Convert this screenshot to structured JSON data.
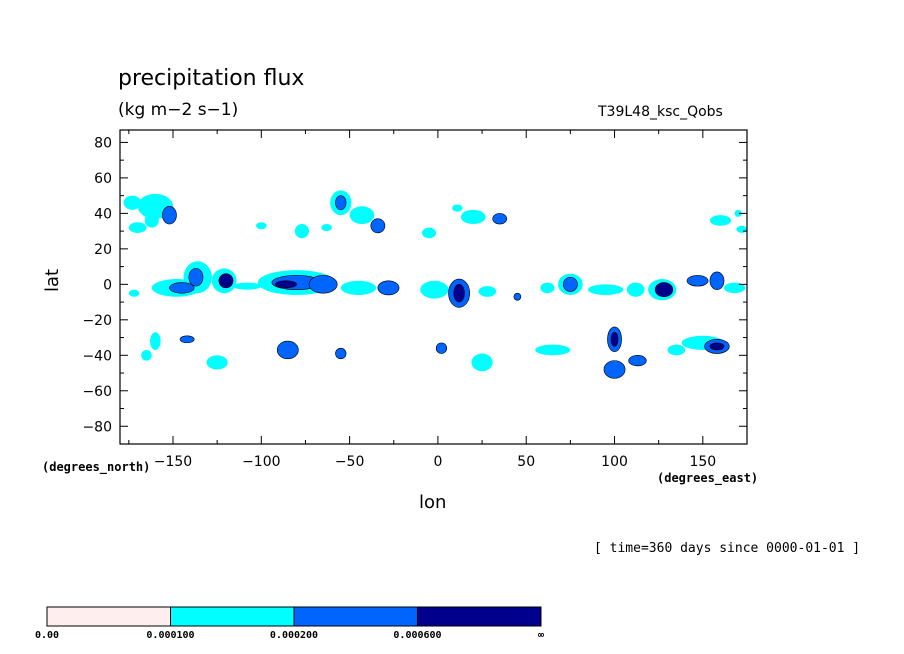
{
  "chart_data": {
    "type": "contour",
    "title": "precipitation flux",
    "units": "(kg m−2 s−1)",
    "run_id": "T39L48_ksc_Qobs",
    "xlabel": "lon",
    "ylabel": "lat",
    "x_units": "(degrees_east)",
    "y_units": "(degrees_north)",
    "xlim": [
      -180,
      175
    ],
    "ylim": [
      -90,
      87
    ],
    "x_ticks": [
      -150,
      -100,
      -50,
      0,
      50,
      100,
      150
    ],
    "x_tick_labels": [
      "−150",
      "−100",
      "−50",
      "0",
      "50",
      "100",
      "150"
    ],
    "y_ticks": [
      80,
      60,
      40,
      20,
      0,
      -20,
      -40,
      -60,
      -80
    ],
    "y_tick_labels": [
      "80",
      "60",
      "40",
      "20",
      "0",
      "−20",
      "−40",
      "−60",
      "−80"
    ],
    "time_note": "[ time=360 days since 0000-01-01 ]",
    "levels": [
      "0.00",
      "0.000100",
      "0.000200",
      "0.000600",
      "∞"
    ],
    "level_colors": [
      "#ffeeee",
      "#00ffff",
      "#0064ff",
      "#00008c"
    ],
    "regions": [
      {
        "lon": -148,
        "lat": -2,
        "w": 14,
        "h": 5,
        "level": 1
      },
      {
        "lon": -145,
        "lat": -2,
        "w": 7,
        "h": 3,
        "level": 2
      },
      {
        "lon": -136,
        "lat": 4,
        "w": 8,
        "h": 9,
        "level": 1
      },
      {
        "lon": -137,
        "lat": 4,
        "w": 4,
        "h": 5,
        "level": 2
      },
      {
        "lon": -121,
        "lat": 2,
        "w": 7,
        "h": 7,
        "level": 1
      },
      {
        "lon": -120,
        "lat": 2,
        "w": 4,
        "h": 4,
        "level": 3
      },
      {
        "lon": -80,
        "lat": 1,
        "w": 22,
        "h": 7,
        "level": 1
      },
      {
        "lon": -80,
        "lat": 1,
        "w": 14,
        "h": 4,
        "level": 2
      },
      {
        "lon": -86,
        "lat": 0,
        "w": 6,
        "h": 2,
        "level": 3
      },
      {
        "lon": -65,
        "lat": 0,
        "w": 8,
        "h": 5,
        "level": 2
      },
      {
        "lon": -45,
        "lat": -2,
        "w": 10,
        "h": 4,
        "level": 1
      },
      {
        "lon": -28,
        "lat": -2,
        "w": 6,
        "h": 4,
        "level": 2
      },
      {
        "lon": -2,
        "lat": -3,
        "w": 8,
        "h": 5,
        "level": 1
      },
      {
        "lon": 12,
        "lat": -5,
        "w": 6,
        "h": 8,
        "level": 2
      },
      {
        "lon": 12,
        "lat": -5,
        "w": 3,
        "h": 5,
        "level": 3
      },
      {
        "lon": -108,
        "lat": -1,
        "w": 8,
        "h": 2,
        "level": 1
      },
      {
        "lon": 75,
        "lat": 0,
        "w": 7,
        "h": 6,
        "level": 1
      },
      {
        "lon": 75,
        "lat": 0,
        "w": 4,
        "h": 4,
        "level": 2
      },
      {
        "lon": 95,
        "lat": -3,
        "w": 10,
        "h": 3,
        "level": 1
      },
      {
        "lon": 112,
        "lat": -3,
        "w": 5,
        "h": 4,
        "level": 1
      },
      {
        "lon": 127,
        "lat": -3,
        "w": 8,
        "h": 6,
        "level": 1
      },
      {
        "lon": 128,
        "lat": -3,
        "w": 5,
        "h": 4,
        "level": 3
      },
      {
        "lon": 147,
        "lat": 2,
        "w": 6,
        "h": 3,
        "level": 2
      },
      {
        "lon": 158,
        "lat": 2,
        "w": 4,
        "h": 5,
        "level": 2
      },
      {
        "lon": 168,
        "lat": -2,
        "w": 6,
        "h": 3,
        "level": 1
      },
      {
        "lon": 62,
        "lat": -2,
        "w": 4,
        "h": 3,
        "level": 1
      },
      {
        "lon": 45,
        "lat": -7,
        "w": 2,
        "h": 2,
        "level": 2
      },
      {
        "lon": 28,
        "lat": -4,
        "w": 5,
        "h": 3,
        "level": 1
      },
      {
        "lon": -173,
        "lat": 46,
        "w": 5,
        "h": 4,
        "level": 1
      },
      {
        "lon": -160,
        "lat": 44,
        "w": 10,
        "h": 7,
        "level": 1
      },
      {
        "lon": -152,
        "lat": 39,
        "w": 4,
        "h": 5,
        "level": 2
      },
      {
        "lon": -170,
        "lat": 32,
        "w": 5,
        "h": 3,
        "level": 1
      },
      {
        "lon": -162,
        "lat": 36,
        "w": 4,
        "h": 4,
        "level": 1
      },
      {
        "lon": -55,
        "lat": 46,
        "w": 6,
        "h": 7,
        "level": 1
      },
      {
        "lon": -55,
        "lat": 46,
        "w": 3,
        "h": 4,
        "level": 2
      },
      {
        "lon": -43,
        "lat": 39,
        "w": 7,
        "h": 5,
        "level": 1
      },
      {
        "lon": -34,
        "lat": 33,
        "w": 4,
        "h": 4,
        "level": 2
      },
      {
        "lon": -77,
        "lat": 30,
        "w": 4,
        "h": 4,
        "level": 1
      },
      {
        "lon": -63,
        "lat": 32,
        "w": 3,
        "h": 2,
        "level": 1
      },
      {
        "lon": -100,
        "lat": 33,
        "w": 3,
        "h": 2,
        "level": 1
      },
      {
        "lon": -5,
        "lat": 29,
        "w": 4,
        "h": 3,
        "level": 1
      },
      {
        "lon": 20,
        "lat": 38,
        "w": 7,
        "h": 4,
        "level": 1
      },
      {
        "lon": 35,
        "lat": 37,
        "w": 4,
        "h": 3,
        "level": 2
      },
      {
        "lon": 11,
        "lat": 43,
        "w": 3,
        "h": 2,
        "level": 1
      },
      {
        "lon": 170,
        "lat": 40,
        "w": 2,
        "h": 2,
        "level": 1
      },
      {
        "lon": 172,
        "lat": 31,
        "w": 3,
        "h": 2,
        "level": 1
      },
      {
        "lon": 160,
        "lat": 36,
        "w": 6,
        "h": 3,
        "level": 1
      },
      {
        "lon": -160,
        "lat": -32,
        "w": 3,
        "h": 5,
        "level": 1
      },
      {
        "lon": -165,
        "lat": -40,
        "w": 3,
        "h": 3,
        "level": 1
      },
      {
        "lon": -142,
        "lat": -31,
        "w": 4,
        "h": 2,
        "level": 2
      },
      {
        "lon": -125,
        "lat": -44,
        "w": 6,
        "h": 4,
        "level": 1
      },
      {
        "lon": -85,
        "lat": -37,
        "w": 6,
        "h": 5,
        "level": 2
      },
      {
        "lon": -55,
        "lat": -39,
        "w": 3,
        "h": 3,
        "level": 2
      },
      {
        "lon": 2,
        "lat": -36,
        "w": 3,
        "h": 3,
        "level": 2
      },
      {
        "lon": 25,
        "lat": -44,
        "w": 6,
        "h": 5,
        "level": 1
      },
      {
        "lon": 65,
        "lat": -37,
        "w": 10,
        "h": 3,
        "level": 1
      },
      {
        "lon": 100,
        "lat": -31,
        "w": 4,
        "h": 7,
        "level": 2
      },
      {
        "lon": 100,
        "lat": -31,
        "w": 2,
        "h": 4,
        "level": 3
      },
      {
        "lon": 100,
        "lat": -48,
        "w": 6,
        "h": 5,
        "level": 2
      },
      {
        "lon": 113,
        "lat": -43,
        "w": 5,
        "h": 3,
        "level": 2
      },
      {
        "lon": 150,
        "lat": -33,
        "w": 12,
        "h": 4,
        "level": 1
      },
      {
        "lon": 158,
        "lat": -35,
        "w": 7,
        "h": 4,
        "level": 2
      },
      {
        "lon": 158,
        "lat": -35,
        "w": 4,
        "h": 2,
        "level": 3
      },
      {
        "lon": 135,
        "lat": -37,
        "w": 5,
        "h": 3,
        "level": 1
      },
      {
        "lon": -172,
        "lat": -5,
        "w": 3,
        "h": 2,
        "level": 1
      }
    ]
  }
}
